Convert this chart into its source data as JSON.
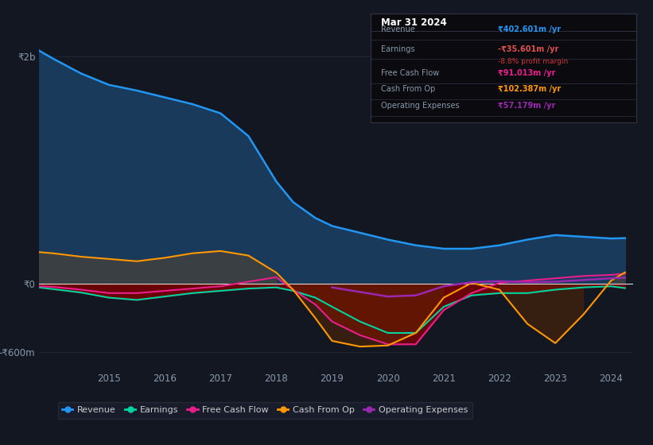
{
  "bg_color": "#131722",
  "plot_bg_color": "#131722",
  "grid_color": "#2a2e39",
  "years": [
    2013.75,
    2014,
    2014.5,
    2015,
    2015.5,
    2016,
    2016.5,
    2017,
    2017.5,
    2018,
    2018.3,
    2018.7,
    2019,
    2019.5,
    2020,
    2020.5,
    2021,
    2021.5,
    2022,
    2022.5,
    2023,
    2023.5,
    2024,
    2024.25
  ],
  "revenue": [
    2050,
    1980,
    1850,
    1750,
    1700,
    1640,
    1580,
    1500,
    1300,
    900,
    720,
    580,
    510,
    450,
    390,
    340,
    310,
    310,
    340,
    390,
    430,
    415,
    400,
    403
  ],
  "earnings": [
    -30,
    -45,
    -75,
    -120,
    -140,
    -110,
    -80,
    -60,
    -40,
    -30,
    -60,
    -120,
    -200,
    -330,
    -430,
    -430,
    -200,
    -100,
    -80,
    -80,
    -50,
    -30,
    -20,
    -36
  ],
  "free_cash_flow": [
    -20,
    -25,
    -50,
    -80,
    -80,
    -60,
    -40,
    -20,
    20,
    60,
    -50,
    -180,
    -330,
    -450,
    -530,
    -530,
    -230,
    -80,
    10,
    30,
    50,
    70,
    80,
    91
  ],
  "cash_from_op": [
    280,
    270,
    240,
    220,
    200,
    230,
    270,
    290,
    250,
    100,
    -50,
    -300,
    -500,
    -550,
    -540,
    -430,
    -120,
    10,
    -50,
    -350,
    -520,
    -270,
    30,
    102
  ],
  "op_exp": [
    null,
    null,
    null,
    null,
    null,
    null,
    null,
    null,
    null,
    null,
    null,
    null,
    -30,
    -70,
    -110,
    -100,
    -20,
    15,
    25,
    15,
    20,
    35,
    50,
    57
  ],
  "revenue_line_color": "#2196f3",
  "revenue_fill_color": "#1a3a5c",
  "earnings_color": "#00d4a0",
  "fcf_color": "#e91e8c",
  "cashop_color": "#ff9800",
  "cashop_fill_pos": "#404040",
  "opex_color": "#9c27b0",
  "zero_line_color": "#ffffff",
  "dark_red_fill": "#6b0000",
  "info_box_bg": "#0a0a0f",
  "info_box_border": "#333344",
  "title_text": "Mar 31 2024",
  "revenue_label": "Revenue",
  "revenue_value": "₹402.601m /yr",
  "earnings_label": "Earnings",
  "earnings_value": "-₹35.601m /yr",
  "earnings_margin": "-8.8% profit margin",
  "fcf_label": "Free Cash Flow",
  "fcf_value": "₹91.013m /yr",
  "cashop_label": "Cash From Op",
  "cashop_value": "₹102.387m /yr",
  "opex_label": "Operating Expenses",
  "opex_value": "₹57.179m /yr",
  "ylim_min": -750,
  "ylim_max": 2300,
  "ytick_labels": [
    "₹2b",
    "₹0",
    "-₹600m"
  ],
  "ytick_values": [
    2000,
    0,
    -600
  ],
  "xtick_labels": [
    "2015",
    "2016",
    "2017",
    "2018",
    "2019",
    "2020",
    "2021",
    "2022",
    "2023",
    "2024"
  ],
  "xtick_values": [
    2015,
    2016,
    2017,
    2018,
    2019,
    2020,
    2021,
    2022,
    2023,
    2024
  ],
  "legend_items": [
    "Revenue",
    "Earnings",
    "Free Cash Flow",
    "Cash From Op",
    "Operating Expenses"
  ],
  "legend_colors": [
    "#2196f3",
    "#00d4a0",
    "#e91e8c",
    "#ff9800",
    "#9c27b0"
  ]
}
